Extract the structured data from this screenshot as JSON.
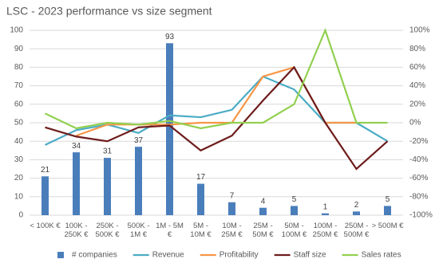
{
  "chart_data": {
    "type": "bar",
    "title": "LSC - 2023 performance vs size segment",
    "categories": [
      "< 100K €",
      "100K - 250K €",
      "250K - 500K €",
      "500K - 1M €",
      "1M - 5M €",
      "5M - 10M €",
      "10M - 25M €",
      "25M - 50M €",
      "50M - 100M €",
      "100M - 250M €",
      "250M - 500M €",
      "> 500M €"
    ],
    "series": [
      {
        "name": "# companies",
        "type": "bar",
        "color": "#4a7ebb",
        "values": [
          21,
          34,
          31,
          37,
          93,
          17,
          7,
          4,
          5,
          1,
          2,
          5
        ]
      },
      {
        "name": "Revenue",
        "type": "line",
        "axis": "y2",
        "color": "#4bacc6",
        "values": [
          -24,
          -8,
          -2,
          -11,
          8,
          6,
          14,
          50,
          36,
          0,
          0,
          -20
        ]
      },
      {
        "name": "Profitability",
        "type": "line",
        "axis": "y2",
        "color": "#f79646",
        "values": [
          null,
          -14,
          -2,
          -2,
          -2,
          0,
          0,
          50,
          60,
          0,
          0,
          null
        ]
      },
      {
        "name": "Staff size",
        "type": "line",
        "axis": "y2",
        "color": "#6e1c1c",
        "values": [
          -5,
          -15,
          -20,
          -5,
          -3,
          -30,
          -14,
          24,
          60,
          0,
          -50,
          -20
        ]
      },
      {
        "name": "Sales rates",
        "type": "line",
        "axis": "y2",
        "color": "#92d050",
        "values": [
          10,
          -6,
          0,
          -2,
          2,
          -6,
          0,
          0,
          20,
          100,
          0,
          0
        ]
      }
    ],
    "ylim": [
      0,
      100
    ],
    "yticks": [
      0,
      10,
      20,
      30,
      40,
      50,
      60,
      70,
      80,
      90,
      100
    ],
    "y2lim": [
      -100,
      100
    ],
    "y2ticks": [
      {
        "value": -100,
        "label": "-100%"
      },
      {
        "value": -80,
        "label": "-80%"
      },
      {
        "value": -60,
        "label": "-60%"
      },
      {
        "value": -40,
        "label": "-40%"
      },
      {
        "value": -20,
        "label": "-20%"
      },
      {
        "value": 0,
        "label": "0%"
      },
      {
        "value": 20,
        "label": "20%"
      },
      {
        "value": 40,
        "label": "40%"
      },
      {
        "value": 60,
        "label": "60%"
      },
      {
        "value": 80,
        "label": "80%"
      },
      {
        "value": 100,
        "label": "100%"
      }
    ],
    "grid": true,
    "legend": "bottom"
  }
}
